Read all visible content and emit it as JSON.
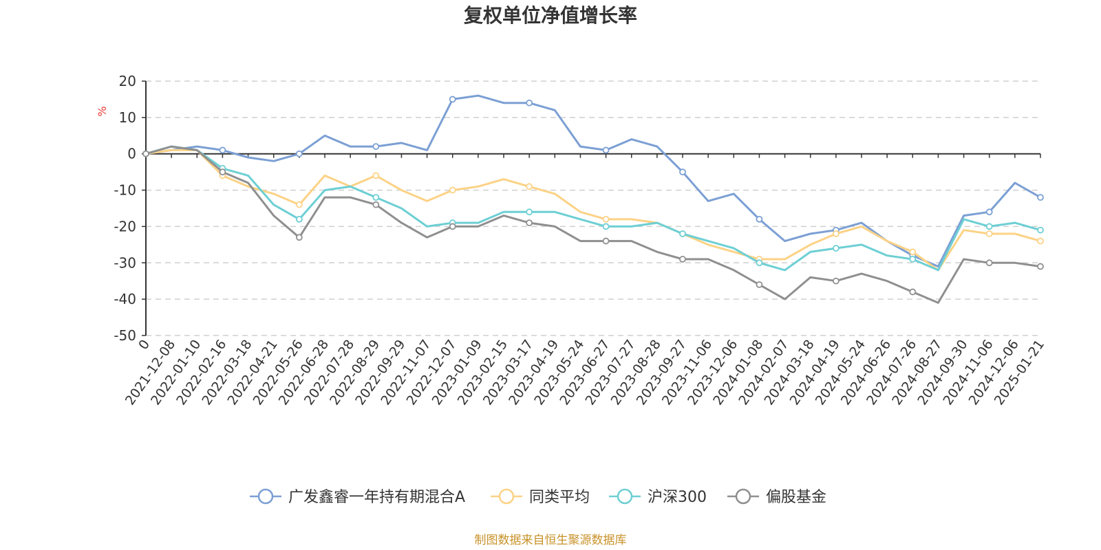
{
  "chart_data": {
    "type": "line",
    "title": "复权单位净值增长率",
    "ylabel": "%",
    "xlabel": "",
    "ylim": [
      -50,
      20
    ],
    "yticks": [
      20,
      10,
      0,
      -10,
      -20,
      -30,
      -40,
      -50
    ],
    "grid": true,
    "legend_position": "bottom",
    "categories": [
      "0",
      "2021-12-08",
      "2022-01-10",
      "2022-02-16",
      "2022-03-18",
      "2022-04-21",
      "2022-05-26",
      "2022-06-28",
      "2022-07-28",
      "2022-08-29",
      "2022-09-29",
      "2022-11-07",
      "2022-12-07",
      "2023-01-09",
      "2023-02-15",
      "2023-03-17",
      "2023-04-19",
      "2023-05-24",
      "2023-06-27",
      "2023-07-27",
      "2023-08-28",
      "2023-09-27",
      "2023-11-06",
      "2023-12-06",
      "2024-01-08",
      "2024-02-07",
      "2024-03-18",
      "2024-04-19",
      "2024-05-24",
      "2024-06-26",
      "2024-07-26",
      "2024-08-27",
      "2024-09-30",
      "2024-11-06",
      "2024-12-06",
      "2025-01-21"
    ],
    "series": [
      {
        "name": "广发鑫睿一年持有期混合A",
        "color": "#7b9fd4",
        "values": [
          0,
          1,
          2,
          1,
          -1,
          -2,
          0,
          5,
          2,
          2,
          3,
          1,
          15,
          16,
          14,
          14,
          12,
          2,
          1,
          4,
          2,
          -5,
          -13,
          -11,
          -18,
          -24,
          -22,
          -21,
          -19,
          -24,
          -28,
          -31,
          -17,
          -16,
          -8,
          -12
        ]
      },
      {
        "name": "同类平均",
        "color": "#fcd286",
        "values": [
          0,
          1,
          1,
          -6,
          -9,
          -11,
          -14,
          -6,
          -9,
          -6,
          -10,
          -13,
          -10,
          -9,
          -7,
          -9,
          -11,
          -16,
          -18,
          -18,
          -19,
          -22,
          -25,
          -27,
          -29,
          -29,
          -25,
          -22,
          -20,
          -24,
          -27,
          -32,
          -21,
          -22,
          -22,
          -24
        ]
      },
      {
        "name": "沪深300",
        "color": "#6dcfd4",
        "values": [
          0,
          2,
          1,
          -4,
          -6,
          -14,
          -18,
          -10,
          -9,
          -12,
          -15,
          -20,
          -19,
          -19,
          -16,
          -16,
          -16,
          -18,
          -20,
          -20,
          -19,
          -22,
          -24,
          -26,
          -30,
          -32,
          -27,
          -26,
          -25,
          -28,
          -29,
          -32,
          -18,
          -20,
          -19,
          -21
        ]
      },
      {
        "name": "偏股基金",
        "color": "#8f8f8f",
        "values": [
          0,
          2,
          1,
          -5,
          -8,
          -17,
          -23,
          -12,
          -12,
          -14,
          -19,
          -23,
          -20,
          -20,
          -17,
          -19,
          -20,
          -24,
          -24,
          -24,
          -27,
          -29,
          -29,
          -32,
          -36,
          -40,
          -34,
          -35,
          -33,
          -35,
          -38,
          -41,
          -29,
          -30,
          -30,
          -31
        ]
      }
    ]
  },
  "legend": {
    "items": [
      "广发鑫睿一年持有期混合A",
      "同类平均",
      "沪深300",
      "偏股基金"
    ]
  },
  "footer": {
    "source": "制图数据来自恒生聚源数据库"
  }
}
